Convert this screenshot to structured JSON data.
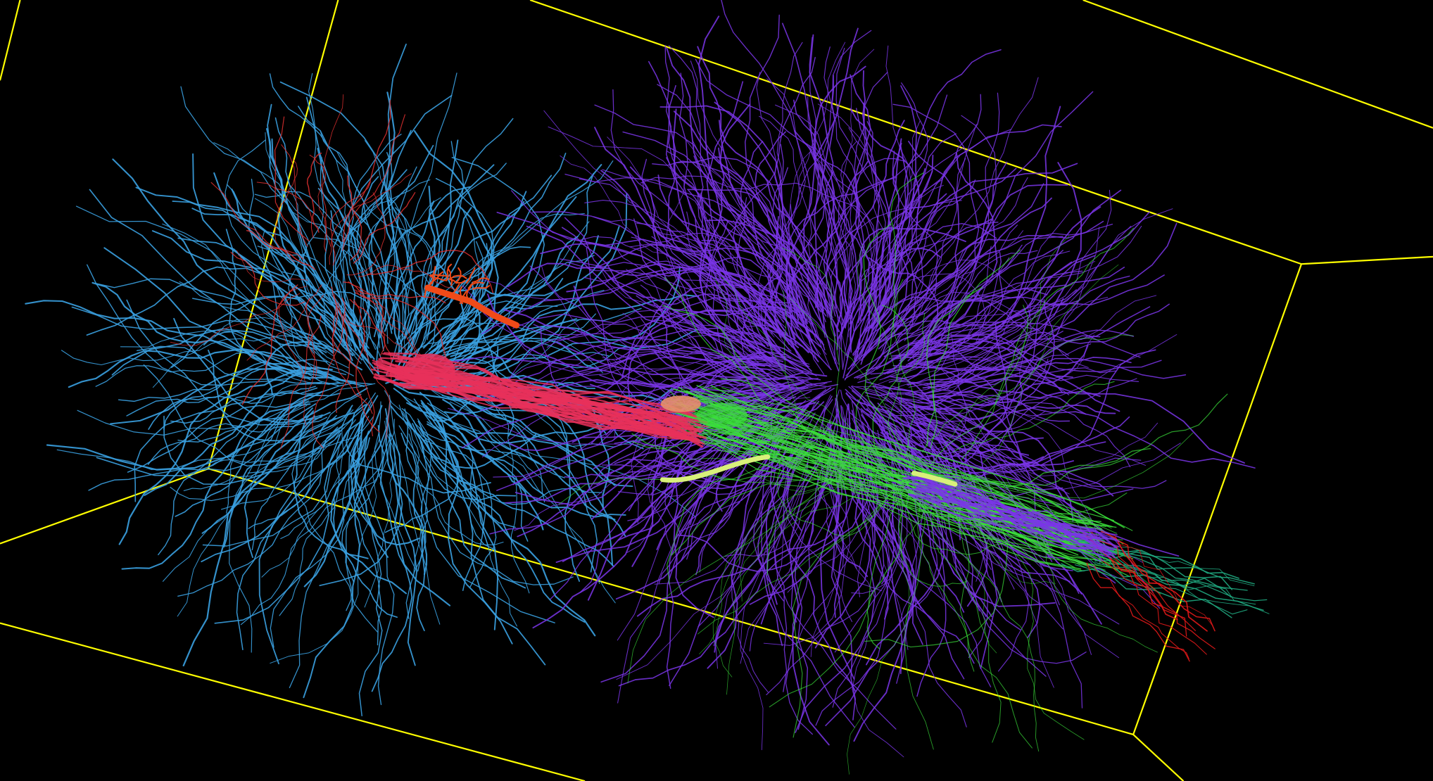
{
  "viewer": {
    "background_color": "#000000",
    "bounding_box_color": "#ffff00"
  },
  "structures": [
    {
      "name": "left-neuron-arbor",
      "color": "#3aa0e0"
    },
    {
      "name": "left-soma-trunk",
      "color": "#e8305a"
    },
    {
      "name": "left-upper-red-branches",
      "color": "#e03030"
    },
    {
      "name": "orange-fragment",
      "color": "#f04a18"
    },
    {
      "name": "right-neuron-arbor",
      "color": "#7a35e8"
    },
    {
      "name": "green-processes",
      "color": "#3ae03a"
    },
    {
      "name": "yellow-green-fiber",
      "color": "#d8f07a"
    },
    {
      "name": "salmon-fragment",
      "color": "#e8906a"
    },
    {
      "name": "teal-tail",
      "color": "#1fa880"
    },
    {
      "name": "red-tail",
      "color": "#e01818"
    }
  ]
}
